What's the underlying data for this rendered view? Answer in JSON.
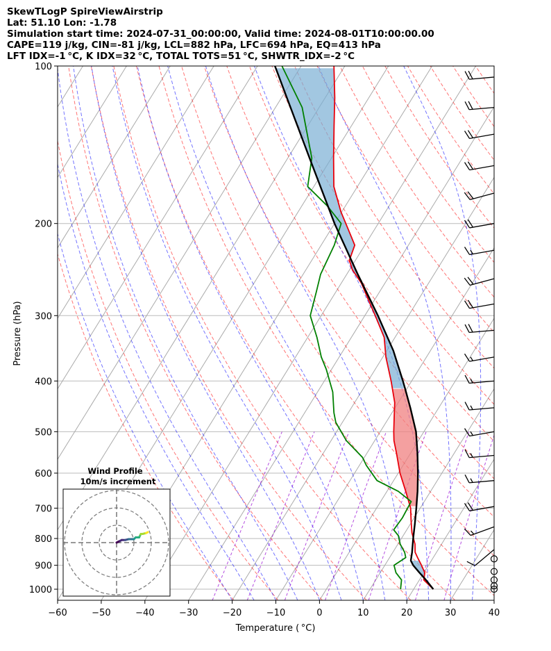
{
  "header": {
    "line1": "SkewTLogP SpireViewAirstrip",
    "line2": "Lat: 51.10   Lon: -1.78",
    "line3": "Simulation start time: 2024-07-31_00:00:00, Valid time: 2024-08-01T10:00:00.00",
    "line4": "CAPE=119 j/kg, CIN=-81 j/kg, LCL=882 hPa, LFC=694 hPa, EQ=413 hPa",
    "line5": "LFT IDX=-1 °C, K IDX=32 °C, TOTAL TOTS=51 °C, SHWTR_IDX=-2 °C"
  },
  "colors": {
    "temperature": "#e8000b",
    "dewpoint": "#008000",
    "parcel": "#000000",
    "cape_fill": "#7bafd4",
    "cin_fill": "#f08080",
    "dry_adiabat": "#ff0000",
    "moist_adiabat": "#0000ff",
    "mixing_ratio": "#9400d3",
    "isotherm": "#888888"
  },
  "chart_data": {
    "type": "line",
    "subtype": "skew-t log-p",
    "xlabel": "Temperature ( °C)",
    "ylabel": "Pressure (hPa)",
    "xlim": [
      -60,
      40
    ],
    "ylim": [
      1050,
      100
    ],
    "x_ticks": [
      "−60",
      "−50",
      "−40",
      "−30",
      "−20",
      "−10",
      "0",
      "10",
      "20",
      "30",
      "40"
    ],
    "y_ticks": [
      {
        "p": 1000,
        "label": "1000"
      },
      {
        "p": 900,
        "label": "900"
      },
      {
        "p": 800,
        "label": "800"
      },
      {
        "p": 700,
        "label": "700"
      },
      {
        "p": 600,
        "label": "600"
      },
      {
        "p": 500,
        "label": "500"
      },
      {
        "p": 400,
        "label": "400"
      },
      {
        "p": 300,
        "label": "300"
      },
      {
        "p": 200,
        "label": "200"
      },
      {
        "p": 100,
        "label": "100"
      }
    ],
    "series": [
      {
        "name": "temperature",
        "pressure": [
          1000,
          960,
          930,
          900,
          870,
          850,
          820,
          780,
          740,
          700,
          650,
          600,
          550,
          520,
          500,
          470,
          440,
          400,
          360,
          330,
          300,
          280,
          260,
          245,
          235,
          220,
          205,
          190,
          170,
          150,
          130,
          115,
          100
        ],
        "values": [
          24.5,
          21,
          20.2,
          18.4,
          16.4,
          15.1,
          13.9,
          11.6,
          9.7,
          7.8,
          4.3,
          0.4,
          -3.2,
          -5.6,
          -6.9,
          -8.8,
          -10.8,
          -14.7,
          -19.3,
          -22.5,
          -27.6,
          -31.4,
          -35.4,
          -39.4,
          -41.4,
          -42.3,
          -46.1,
          -50.2,
          -55.4,
          -59.5,
          -64,
          -67.8,
          -72.5
        ]
      },
      {
        "name": "dewpoint",
        "pressure": [
          1000,
          960,
          930,
          900,
          870,
          850,
          820,
          790,
          770,
          730,
          700,
          680,
          650,
          620,
          580,
          560,
          520,
          480,
          460,
          420,
          380,
          360,
          330,
          300,
          270,
          250,
          220,
          200,
          185,
          170,
          150,
          120,
          100
        ],
        "values": [
          17,
          15.9,
          13.6,
          12.1,
          13.7,
          12.7,
          10.5,
          8.9,
          7,
          7.3,
          7.1,
          7,
          2.6,
          -3.8,
          -8.4,
          -10.4,
          -16.5,
          -21.5,
          -23.3,
          -26.5,
          -31.2,
          -34.1,
          -37.9,
          -42.5,
          -44.5,
          -46,
          -47,
          -48.5,
          -54.2,
          -61.4,
          -64.5,
          -73.9,
          -84.4
        ]
      },
      {
        "name": "parcel",
        "pressure": [
          1000,
          960,
          930,
          900,
          882,
          850,
          800,
          750,
          700,
          650,
          600,
          550,
          500,
          450,
          413,
          400,
          350,
          300,
          250,
          200,
          150,
          100
        ],
        "values": [
          24.5,
          21.5,
          19,
          16.5,
          15.3,
          14.4,
          12.7,
          11,
          9.1,
          7,
          4.5,
          1.6,
          -1.8,
          -6.5,
          -10.5,
          -12,
          -18.5,
          -27,
          -37.5,
          -50,
          -65,
          -86
        ]
      }
    ],
    "regions": [
      {
        "name": "CAPE",
        "from_hPa": 413,
        "to_hPa": 100
      },
      {
        "name": "CIN",
        "from_hPa": 694,
        "to_hPa": 413
      },
      {
        "name": "CAPE",
        "from_hPa": 960,
        "to_hPa": 882
      }
    ],
    "wind_barbs": [
      {
        "p": 1000,
        "dir": 0,
        "spd": 0
      },
      {
        "p": 985,
        "dir": 0,
        "spd": 0
      },
      {
        "p": 960,
        "dir": 0,
        "spd": 0
      },
      {
        "p": 925,
        "dir": 0,
        "spd": 0
      },
      {
        "p": 875,
        "dir": 0,
        "spd": 0
      },
      {
        "p": 840,
        "dir": 230,
        "spd": 10
      },
      {
        "p": 760,
        "dir": 250,
        "spd": 15
      },
      {
        "p": 695,
        "dir": 260,
        "spd": 20
      },
      {
        "p": 620,
        "dir": 265,
        "spd": 15
      },
      {
        "p": 555,
        "dir": 265,
        "spd": 15
      },
      {
        "p": 500,
        "dir": 260,
        "spd": 15
      },
      {
        "p": 450,
        "dir": 265,
        "spd": 15
      },
      {
        "p": 400,
        "dir": 265,
        "spd": 15
      },
      {
        "p": 360,
        "dir": 260,
        "spd": 15
      },
      {
        "p": 320,
        "dir": 265,
        "spd": 20
      },
      {
        "p": 285,
        "dir": 260,
        "spd": 20
      },
      {
        "p": 255,
        "dir": 255,
        "spd": 20
      },
      {
        "p": 225,
        "dir": 260,
        "spd": 15
      },
      {
        "p": 200,
        "dir": 260,
        "spd": 20
      },
      {
        "p": 175,
        "dir": 255,
        "spd": 20
      },
      {
        "p": 155,
        "dir": 260,
        "spd": 20
      },
      {
        "p": 135,
        "dir": 260,
        "spd": 20
      },
      {
        "p": 120,
        "dir": 265,
        "spd": 20
      },
      {
        "p": 105,
        "dir": 265,
        "spd": 20
      }
    ],
    "hodograph": {
      "title": "Wind Profile",
      "subtitle": "10m/s increment",
      "u": [
        0,
        1,
        2,
        3,
        5,
        7,
        9,
        10,
        11,
        13,
        13.5,
        14,
        15,
        17,
        18
      ],
      "v": [
        0,
        0.5,
        1,
        1.5,
        1.5,
        2,
        2,
        2,
        3,
        3,
        4,
        5,
        5,
        5.5,
        6
      ]
    }
  }
}
